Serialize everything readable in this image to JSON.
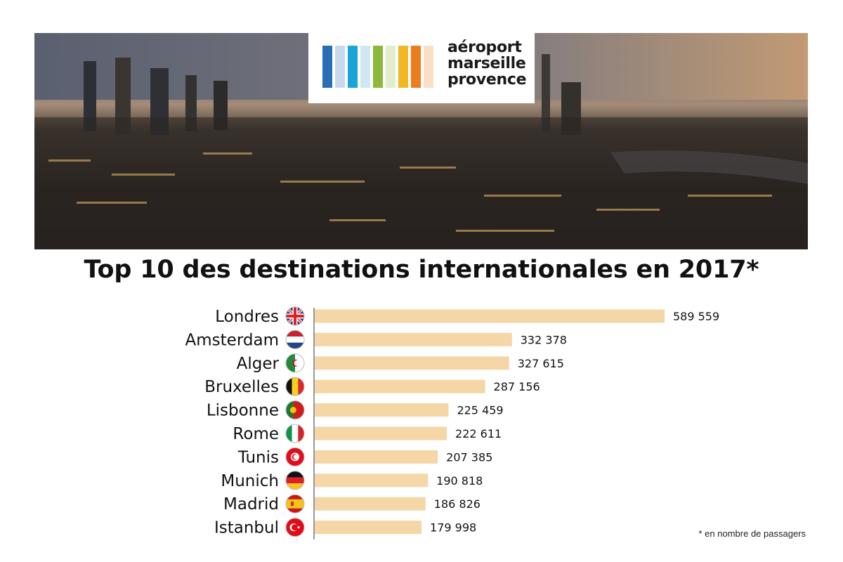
{
  "logo": {
    "lines": [
      "aéroport",
      "marseille",
      "provence"
    ],
    "bar_colors": [
      "#2a6eb8",
      "#1aa5d9",
      "#8db83a",
      "#f2b824",
      "#ed7d1c"
    ]
  },
  "chart_data": {
    "type": "bar",
    "orientation": "horizontal",
    "title": "Top 10 des destinations internationales en 2017*",
    "footnote": "* en nombre de passagers",
    "bar_color": "#f5d6a6",
    "categories": [
      "Londres",
      "Amsterdam",
      "Alger",
      "Bruxelles",
      "Lisbonne",
      "Rome",
      "Tunis",
      "Munich",
      "Madrid",
      "Istanbul"
    ],
    "values": [
      589559,
      332378,
      327615,
      287156,
      225459,
      222611,
      207385,
      190818,
      186826,
      179998
    ],
    "value_labels": [
      "589 559",
      "332 378",
      "327 615",
      "287 156",
      "225 459",
      "222 611",
      "207 385",
      "190 818",
      "186 826",
      "179 998"
    ],
    "flags": [
      "uk-flag-icon",
      "netherlands-flag-icon",
      "algeria-flag-icon",
      "belgium-flag-icon",
      "portugal-flag-icon",
      "italy-flag-icon",
      "tunisia-flag-icon",
      "germany-flag-icon",
      "spain-flag-icon",
      "turkey-flag-icon"
    ],
    "xlim": [
      0,
      589559
    ]
  }
}
